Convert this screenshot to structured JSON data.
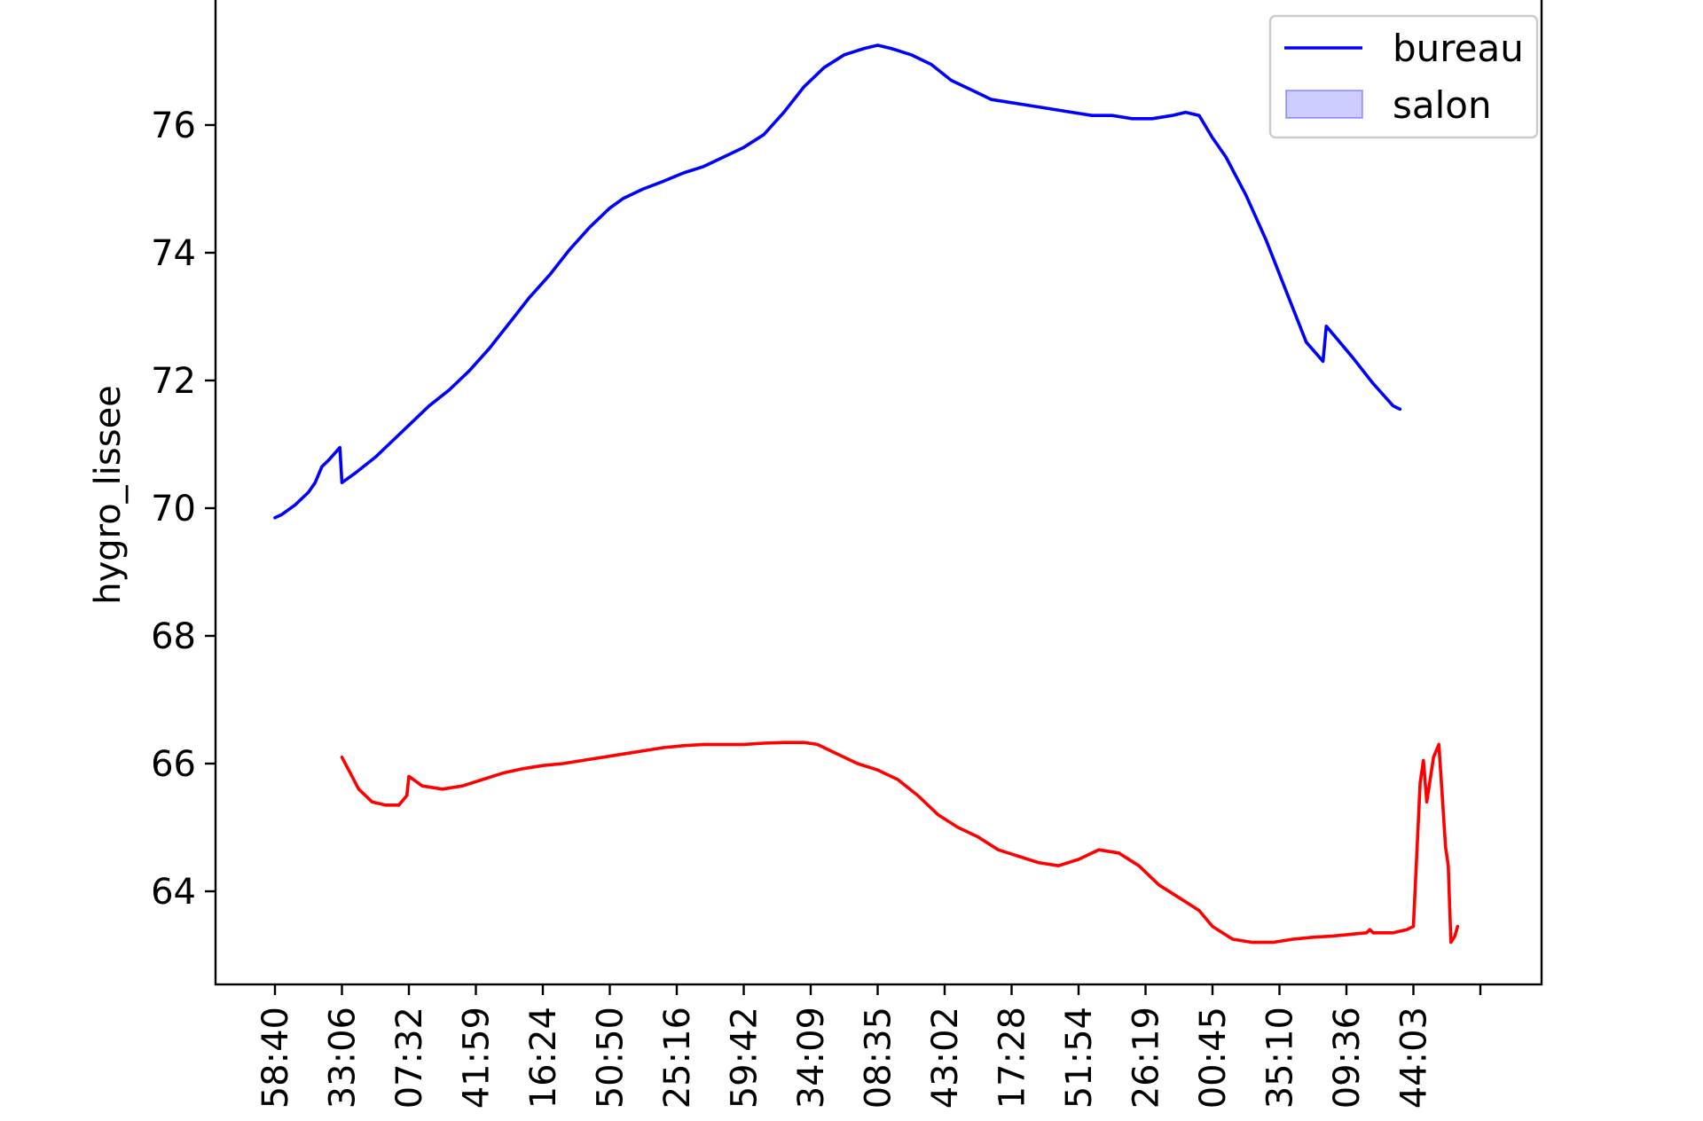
{
  "chart_data": {
    "type": "line",
    "title": "",
    "xlabel": "",
    "ylabel": "hygro_lissee",
    "ylim": [
      62.5,
      78.0
    ],
    "yticks": [
      64,
      66,
      68,
      70,
      72,
      74,
      76
    ],
    "xticks": [
      {
        "x": 0,
        "label": "58:40"
      },
      {
        "x": 1,
        "label": "33:06"
      },
      {
        "x": 2,
        "label": "07:32"
      },
      {
        "x": 3,
        "label": "41:59"
      },
      {
        "x": 4,
        "label": "16:24"
      },
      {
        "x": 5,
        "label": "50:50"
      },
      {
        "x": 6,
        "label": "25:16"
      },
      {
        "x": 7,
        "label": "59:42"
      },
      {
        "x": 8,
        "label": "34:09"
      },
      {
        "x": 9,
        "label": "08:35"
      },
      {
        "x": 10,
        "label": "43:02"
      },
      {
        "x": 11,
        "label": "17:28"
      },
      {
        "x": 12,
        "label": "51:54"
      },
      {
        "x": 13,
        "label": "26:19"
      },
      {
        "x": 14,
        "label": "00:45"
      },
      {
        "x": 15,
        "label": "35:10"
      },
      {
        "x": 16,
        "label": "09:36"
      },
      {
        "x": 17,
        "label": "44:03"
      },
      {
        "x": 18,
        "label": ""
      }
    ],
    "grid": false,
    "legend": {
      "position": "top-right",
      "entries": [
        {
          "name": "bureau",
          "style": "line",
          "color": "#0000ff"
        },
        {
          "name": "salon",
          "style": "patch",
          "color": "#0000ff"
        }
      ]
    },
    "series": [
      {
        "name": "bureau",
        "color": "#0000ff",
        "points": [
          [
            0,
            69.85
          ],
          [
            0.1,
            69.9
          ],
          [
            0.3,
            70.05
          ],
          [
            0.5,
            70.25
          ],
          [
            0.6,
            70.4
          ],
          [
            0.7,
            70.65
          ],
          [
            0.8,
            70.75
          ],
          [
            0.97,
            70.95
          ],
          [
            1.0,
            70.4
          ],
          [
            1.2,
            70.55
          ],
          [
            1.5,
            70.8
          ],
          [
            1.7,
            71.0
          ],
          [
            2.0,
            71.3
          ],
          [
            2.3,
            71.6
          ],
          [
            2.6,
            71.85
          ],
          [
            2.9,
            72.15
          ],
          [
            3.2,
            72.5
          ],
          [
            3.5,
            72.9
          ],
          [
            3.8,
            73.3
          ],
          [
            4.1,
            73.65
          ],
          [
            4.4,
            74.05
          ],
          [
            4.7,
            74.4
          ],
          [
            5.0,
            74.7
          ],
          [
            5.2,
            74.85
          ],
          [
            5.5,
            75.0
          ],
          [
            5.8,
            75.12
          ],
          [
            6.1,
            75.25
          ],
          [
            6.4,
            75.35
          ],
          [
            6.7,
            75.5
          ],
          [
            7.0,
            75.65
          ],
          [
            7.3,
            75.85
          ],
          [
            7.6,
            76.2
          ],
          [
            7.9,
            76.6
          ],
          [
            8.2,
            76.9
          ],
          [
            8.5,
            77.1
          ],
          [
            8.8,
            77.2
          ],
          [
            9.0,
            77.25
          ],
          [
            9.2,
            77.2
          ],
          [
            9.5,
            77.1
          ],
          [
            9.8,
            76.95
          ],
          [
            10.1,
            76.7
          ],
          [
            10.4,
            76.55
          ],
          [
            10.7,
            76.4
          ],
          [
            11.0,
            76.35
          ],
          [
            11.3,
            76.3
          ],
          [
            11.6,
            76.25
          ],
          [
            11.9,
            76.2
          ],
          [
            12.2,
            76.15
          ],
          [
            12.5,
            76.15
          ],
          [
            12.8,
            76.1
          ],
          [
            13.1,
            76.1
          ],
          [
            13.4,
            76.15
          ],
          [
            13.6,
            76.2
          ],
          [
            13.8,
            76.15
          ],
          [
            14.0,
            75.8
          ],
          [
            14.2,
            75.5
          ],
          [
            14.5,
            74.9
          ],
          [
            14.8,
            74.2
          ],
          [
            15.1,
            73.4
          ],
          [
            15.4,
            72.6
          ],
          [
            15.65,
            72.3
          ],
          [
            15.7,
            72.85
          ],
          [
            15.9,
            72.6
          ],
          [
            16.1,
            72.35
          ],
          [
            16.4,
            71.95
          ],
          [
            16.7,
            71.6
          ],
          [
            16.8,
            71.55
          ]
        ]
      },
      {
        "name": "salon",
        "color": "#ff0000",
        "points": [
          [
            1.0,
            66.1
          ],
          [
            1.1,
            65.9
          ],
          [
            1.25,
            65.6
          ],
          [
            1.45,
            65.4
          ],
          [
            1.65,
            65.35
          ],
          [
            1.85,
            65.35
          ],
          [
            1.97,
            65.5
          ],
          [
            2.0,
            65.8
          ],
          [
            2.2,
            65.65
          ],
          [
            2.5,
            65.6
          ],
          [
            2.8,
            65.65
          ],
          [
            3.1,
            65.75
          ],
          [
            3.4,
            65.85
          ],
          [
            3.7,
            65.92
          ],
          [
            4.0,
            65.97
          ],
          [
            4.3,
            66.0
          ],
          [
            4.6,
            66.05
          ],
          [
            4.9,
            66.1
          ],
          [
            5.2,
            66.15
          ],
          [
            5.5,
            66.2
          ],
          [
            5.8,
            66.25
          ],
          [
            6.1,
            66.28
          ],
          [
            6.4,
            66.3
          ],
          [
            6.7,
            66.3
          ],
          [
            7.0,
            66.3
          ],
          [
            7.3,
            66.32
          ],
          [
            7.6,
            66.33
          ],
          [
            7.9,
            66.33
          ],
          [
            8.1,
            66.3
          ],
          [
            8.4,
            66.15
          ],
          [
            8.7,
            66.0
          ],
          [
            9.0,
            65.9
          ],
          [
            9.3,
            65.75
          ],
          [
            9.6,
            65.5
          ],
          [
            9.9,
            65.2
          ],
          [
            10.2,
            65.0
          ],
          [
            10.5,
            64.85
          ],
          [
            10.8,
            64.65
          ],
          [
            11.1,
            64.55
          ],
          [
            11.4,
            64.45
          ],
          [
            11.7,
            64.4
          ],
          [
            12.0,
            64.5
          ],
          [
            12.3,
            64.65
          ],
          [
            12.6,
            64.6
          ],
          [
            12.9,
            64.4
          ],
          [
            13.2,
            64.1
          ],
          [
            13.5,
            63.9
          ],
          [
            13.8,
            63.7
          ],
          [
            14.0,
            63.45
          ],
          [
            14.3,
            63.25
          ],
          [
            14.6,
            63.2
          ],
          [
            14.9,
            63.2
          ],
          [
            15.2,
            63.25
          ],
          [
            15.5,
            63.28
          ],
          [
            15.8,
            63.3
          ],
          [
            16.1,
            63.33
          ],
          [
            16.3,
            63.35
          ],
          [
            16.35,
            63.4
          ],
          [
            16.4,
            63.35
          ],
          [
            16.7,
            63.35
          ],
          [
            16.9,
            63.4
          ],
          [
            17.0,
            63.45
          ],
          [
            17.1,
            65.7
          ],
          [
            17.15,
            66.05
          ],
          [
            17.2,
            65.4
          ],
          [
            17.3,
            66.1
          ],
          [
            17.38,
            66.3
          ],
          [
            17.43,
            65.5
          ],
          [
            17.48,
            64.7
          ],
          [
            17.52,
            64.4
          ],
          [
            17.56,
            63.2
          ],
          [
            17.62,
            63.3
          ],
          [
            17.66,
            63.45
          ]
        ]
      }
    ]
  }
}
